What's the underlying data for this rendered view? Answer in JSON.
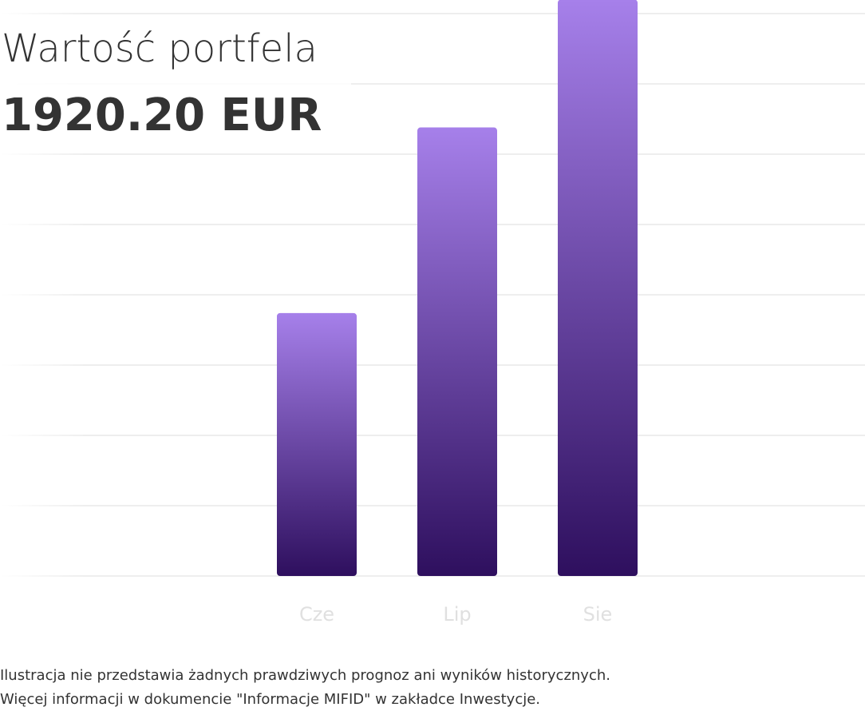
{
  "chart_data": {
    "type": "bar",
    "title": "Wartość portfela",
    "subtitle": "1920.20 EUR",
    "categories": [
      "Cze",
      "Lip",
      "Sie"
    ],
    "values": [
      3.74,
      6.38,
      8.2
    ],
    "gradient": [
      "#a680ea",
      "#2e0f5e"
    ],
    "ylim": [
      0,
      8
    ],
    "yticks": [
      0,
      1,
      2,
      3,
      4,
      5,
      6,
      7,
      8
    ],
    "grid": true,
    "notes": [
      "Ilustracja nie przedstawia żadnych prawdziwych prognoz ani wyników historycznych.",
      "Więcej informacji w  dokumencie \"Informacje MIFID\" w zakładce Inwestycje."
    ]
  }
}
